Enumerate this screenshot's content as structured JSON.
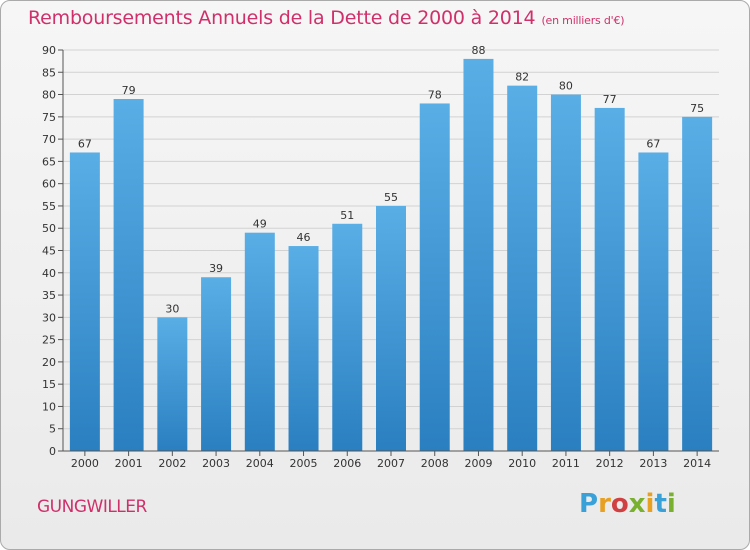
{
  "header": {
    "title": "Remboursements Annuels de la Dette de 2000 à 2014",
    "unit": "(en milliers d'€)"
  },
  "footer": {
    "commune": "GUNGWILLER",
    "logo": "Proxiti"
  },
  "colors": {
    "accent": "#d0306a",
    "bar_top": "#5aaee6",
    "bar_bottom": "#2a7fc0"
  },
  "chart_data": {
    "type": "bar",
    "title": "Remboursements Annuels de la Dette de 2000 à 2014",
    "subtitle": "(en milliers d'€)",
    "xlabel": "",
    "ylabel": "",
    "categories": [
      "2000",
      "2001",
      "2002",
      "2003",
      "2004",
      "2005",
      "2006",
      "2007",
      "2008",
      "2009",
      "2010",
      "2011",
      "2012",
      "2013",
      "2014"
    ],
    "values": [
      67,
      79,
      30,
      39,
      49,
      46,
      51,
      55,
      78,
      88,
      82,
      80,
      77,
      67,
      75
    ],
    "ylim": [
      0,
      90
    ],
    "ytick_step": 5,
    "grid": "horizontal",
    "legend": "none"
  }
}
